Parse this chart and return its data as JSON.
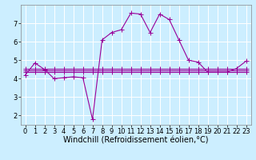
{
  "xlabel": "Windchill (Refroidissement éolien,°C)",
  "ylabel": "",
  "bg_color": "#cceeff",
  "line_color": "#990099",
  "xlim": [
    -0.5,
    23.5
  ],
  "ylim": [
    1.5,
    8.0
  ],
  "yticks": [
    2,
    3,
    4,
    5,
    6,
    7
  ],
  "xticks": [
    0,
    1,
    2,
    3,
    4,
    5,
    6,
    7,
    8,
    9,
    10,
    11,
    12,
    13,
    14,
    15,
    16,
    17,
    18,
    19,
    20,
    21,
    22,
    23
  ],
  "series": {
    "main": {
      "x": [
        0,
        1,
        2,
        3,
        4,
        5,
        6,
        7,
        8,
        9,
        10,
        11,
        12,
        13,
        14,
        15,
        16,
        17,
        18,
        19,
        20,
        21,
        22,
        23
      ],
      "y": [
        4.2,
        4.85,
        4.5,
        4.0,
        4.05,
        4.1,
        4.05,
        1.8,
        6.1,
        6.5,
        6.65,
        7.55,
        7.5,
        6.5,
        7.5,
        7.2,
        6.1,
        5.0,
        4.9,
        4.35,
        4.35,
        4.35,
        4.55,
        4.95
      ]
    },
    "flat1": {
      "x": [
        0,
        1,
        2,
        3,
        4,
        5,
        6,
        7,
        8,
        9,
        10,
        11,
        12,
        13,
        14,
        15,
        16,
        17,
        18,
        19,
        20,
        21,
        22,
        23
      ],
      "y": [
        4.55,
        4.55,
        4.55,
        4.55,
        4.55,
        4.55,
        4.55,
        4.55,
        4.55,
        4.55,
        4.55,
        4.55,
        4.55,
        4.55,
        4.55,
        4.55,
        4.55,
        4.55,
        4.55,
        4.55,
        4.55,
        4.55,
        4.55,
        4.55
      ]
    },
    "flat2": {
      "x": [
        0,
        1,
        2,
        3,
        4,
        5,
        6,
        7,
        8,
        9,
        10,
        11,
        12,
        13,
        14,
        15,
        16,
        17,
        18,
        19,
        20,
        21,
        22,
        23
      ],
      "y": [
        4.45,
        4.45,
        4.45,
        4.45,
        4.45,
        4.45,
        4.45,
        4.45,
        4.45,
        4.45,
        4.45,
        4.45,
        4.45,
        4.45,
        4.45,
        4.45,
        4.45,
        4.45,
        4.45,
        4.45,
        4.45,
        4.45,
        4.45,
        4.45
      ]
    },
    "flat3": {
      "x": [
        0,
        1,
        2,
        3,
        4,
        5,
        6,
        7,
        8,
        9,
        10,
        11,
        12,
        13,
        14,
        15,
        16,
        17,
        18,
        19,
        20,
        21,
        22,
        23
      ],
      "y": [
        4.38,
        4.38,
        4.38,
        4.38,
        4.38,
        4.38,
        4.38,
        4.38,
        4.38,
        4.38,
        4.38,
        4.38,
        4.38,
        4.38,
        4.38,
        4.38,
        4.38,
        4.38,
        4.38,
        4.38,
        4.38,
        4.38,
        4.38,
        4.38
      ]
    }
  },
  "grid_color": "#ffffff",
  "tick_fontsize": 6,
  "xlabel_fontsize": 7,
  "marker": "+",
  "markersize": 4,
  "linewidth": 0.8
}
